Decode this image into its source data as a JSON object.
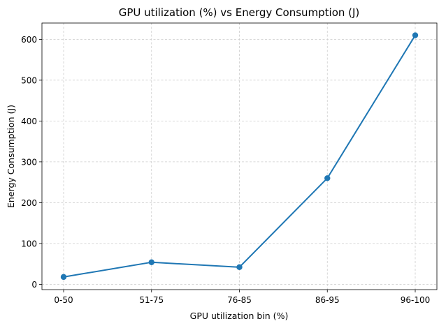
{
  "chart_data": {
    "type": "line",
    "title": "GPU utilization (%) vs Energy Consumption (J)",
    "xlabel": "GPU utilization bin (%)",
    "ylabel": "Energy Consumption (J)",
    "categories": [
      "0-50",
      "51-75",
      "76-85",
      "86-95",
      "96-100"
    ],
    "series": [
      {
        "values": [
          18,
          54,
          42,
          260,
          610
        ],
        "color": "#1f77b4",
        "marker": "circle"
      }
    ],
    "ylim": [
      -13,
      640
    ],
    "yticks": [
      0,
      100,
      200,
      300,
      400,
      500,
      600
    ],
    "grid": true
  }
}
